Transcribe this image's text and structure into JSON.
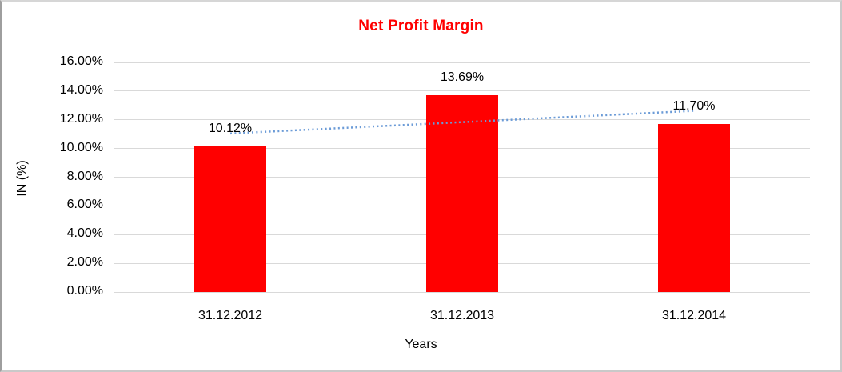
{
  "window": {
    "background": "#ffffff",
    "border_color": "#9e9e9e"
  },
  "chart_data": {
    "type": "bar",
    "title": "Net Profit Margin",
    "title_color": "#ff0000",
    "categories": [
      "31.12.2012",
      "31.12.2013",
      "31.12.2014"
    ],
    "series": [
      {
        "name": "Net Profit Margin",
        "values": [
          10.12,
          13.69,
          11.7
        ]
      }
    ],
    "data_labels": [
      "10.12%",
      "13.69%",
      "11.70%"
    ],
    "xlabel": "Years",
    "ylabel": "IN (%)",
    "ylim": [
      0,
      16
    ],
    "ytick_step": 2,
    "ytick_labels": [
      "0.00%",
      "2.00%",
      "4.00%",
      "6.00%",
      "8.00%",
      "10.00%",
      "12.00%",
      "14.00%",
      "16.00%"
    ],
    "bar_color": "#ff0000",
    "grid": true,
    "gridline_color": "#d9d9d9",
    "legend": false,
    "trendline": {
      "type": "linear",
      "style": "dotted",
      "color": "#6b9bd7"
    }
  }
}
